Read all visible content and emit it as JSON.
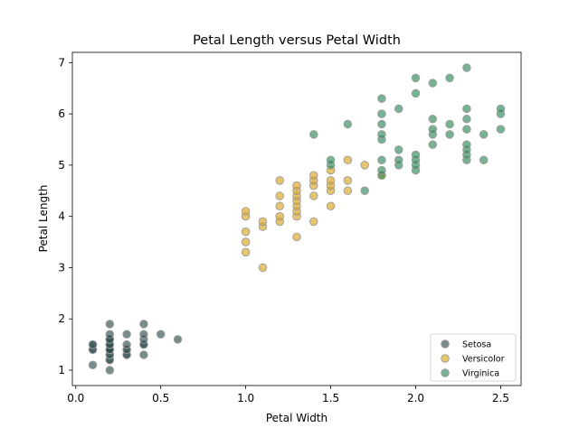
{
  "chart_data": {
    "type": "scatter",
    "title": "Petal Length versus Petal Width",
    "xlabel": "Petal Width",
    "ylabel": "Petal Length",
    "xlim": [
      -0.02,
      2.62
    ],
    "ylim": [
      0.7,
      7.2
    ],
    "xticks": [
      0.0,
      0.5,
      1.0,
      1.5,
      2.0,
      2.5
    ],
    "xtick_labels": [
      "0.0",
      "0.5",
      "1.0",
      "1.5",
      "2.0",
      "2.5"
    ],
    "yticks": [
      1,
      2,
      3,
      4,
      5,
      6,
      7
    ],
    "ytick_labels": [
      "1",
      "2",
      "3",
      "4",
      "5",
      "6",
      "7"
    ],
    "grid": false,
    "legend_position": "bottom-right",
    "series": [
      {
        "name": "Setosa",
        "color": "#2f4f4f",
        "points": [
          [
            0.1,
            1.1
          ],
          [
            0.1,
            1.4
          ],
          [
            0.1,
            1.4
          ],
          [
            0.1,
            1.5
          ],
          [
            0.1,
            1.5
          ],
          [
            0.2,
            1.0
          ],
          [
            0.2,
            1.2
          ],
          [
            0.2,
            1.2
          ],
          [
            0.2,
            1.3
          ],
          [
            0.2,
            1.3
          ],
          [
            0.2,
            1.4
          ],
          [
            0.2,
            1.4
          ],
          [
            0.2,
            1.4
          ],
          [
            0.2,
            1.4
          ],
          [
            0.2,
            1.4
          ],
          [
            0.2,
            1.5
          ],
          [
            0.2,
            1.5
          ],
          [
            0.2,
            1.5
          ],
          [
            0.2,
            1.6
          ],
          [
            0.2,
            1.6
          ],
          [
            0.2,
            1.6
          ],
          [
            0.2,
            1.7
          ],
          [
            0.2,
            1.9
          ],
          [
            0.3,
            1.3
          ],
          [
            0.3,
            1.3
          ],
          [
            0.3,
            1.4
          ],
          [
            0.3,
            1.4
          ],
          [
            0.3,
            1.5
          ],
          [
            0.3,
            1.7
          ],
          [
            0.4,
            1.3
          ],
          [
            0.4,
            1.5
          ],
          [
            0.4,
            1.5
          ],
          [
            0.4,
            1.6
          ],
          [
            0.4,
            1.7
          ],
          [
            0.4,
            1.9
          ],
          [
            0.5,
            1.7
          ],
          [
            0.6,
            1.6
          ]
        ]
      },
      {
        "name": "Versicolor",
        "color": "#daa520",
        "points": [
          [
            1.0,
            3.3
          ],
          [
            1.0,
            3.5
          ],
          [
            1.0,
            3.7
          ],
          [
            1.0,
            4.0
          ],
          [
            1.0,
            4.1
          ],
          [
            1.1,
            3.0
          ],
          [
            1.1,
            3.8
          ],
          [
            1.1,
            3.9
          ],
          [
            1.2,
            3.9
          ],
          [
            1.2,
            4.0
          ],
          [
            1.2,
            4.2
          ],
          [
            1.2,
            4.4
          ],
          [
            1.2,
            4.7
          ],
          [
            1.3,
            3.6
          ],
          [
            1.3,
            4.0
          ],
          [
            1.3,
            4.1
          ],
          [
            1.3,
            4.2
          ],
          [
            1.3,
            4.3
          ],
          [
            1.3,
            4.4
          ],
          [
            1.3,
            4.5
          ],
          [
            1.3,
            4.6
          ],
          [
            1.4,
            3.9
          ],
          [
            1.4,
            4.4
          ],
          [
            1.4,
            4.6
          ],
          [
            1.4,
            4.7
          ],
          [
            1.4,
            4.8
          ],
          [
            1.5,
            4.2
          ],
          [
            1.5,
            4.5
          ],
          [
            1.5,
            4.6
          ],
          [
            1.5,
            4.7
          ],
          [
            1.5,
            4.9
          ],
          [
            1.6,
            4.5
          ],
          [
            1.6,
            4.7
          ],
          [
            1.6,
            5.1
          ],
          [
            1.7,
            5.0
          ],
          [
            1.8,
            4.8
          ]
        ]
      },
      {
        "name": "Virginica",
        "color": "#2e8b57",
        "points": [
          [
            1.4,
            5.6
          ],
          [
            1.5,
            5.0
          ],
          [
            1.5,
            5.1
          ],
          [
            1.6,
            5.8
          ],
          [
            1.7,
            4.5
          ],
          [
            1.8,
            4.8
          ],
          [
            1.8,
            4.9
          ],
          [
            1.8,
            5.1
          ],
          [
            1.8,
            5.5
          ],
          [
            1.8,
            5.6
          ],
          [
            1.8,
            5.8
          ],
          [
            1.8,
            6.0
          ],
          [
            1.8,
            6.3
          ],
          [
            1.9,
            5.0
          ],
          [
            1.9,
            5.1
          ],
          [
            1.9,
            5.3
          ],
          [
            1.9,
            6.1
          ],
          [
            2.0,
            4.9
          ],
          [
            2.0,
            5.0
          ],
          [
            2.0,
            5.1
          ],
          [
            2.0,
            5.2
          ],
          [
            2.0,
            6.4
          ],
          [
            2.0,
            6.7
          ],
          [
            2.1,
            5.4
          ],
          [
            2.1,
            5.6
          ],
          [
            2.1,
            5.7
          ],
          [
            2.1,
            5.9
          ],
          [
            2.1,
            6.6
          ],
          [
            2.2,
            5.6
          ],
          [
            2.2,
            5.8
          ],
          [
            2.2,
            6.7
          ],
          [
            2.3,
            5.1
          ],
          [
            2.3,
            5.2
          ],
          [
            2.3,
            5.3
          ],
          [
            2.3,
            5.4
          ],
          [
            2.3,
            5.7
          ],
          [
            2.3,
            5.9
          ],
          [
            2.3,
            6.1
          ],
          [
            2.3,
            6.9
          ],
          [
            2.4,
            5.1
          ],
          [
            2.4,
            5.6
          ],
          [
            2.5,
            5.7
          ],
          [
            2.5,
            6.0
          ],
          [
            2.5,
            6.1
          ]
        ]
      }
    ]
  }
}
